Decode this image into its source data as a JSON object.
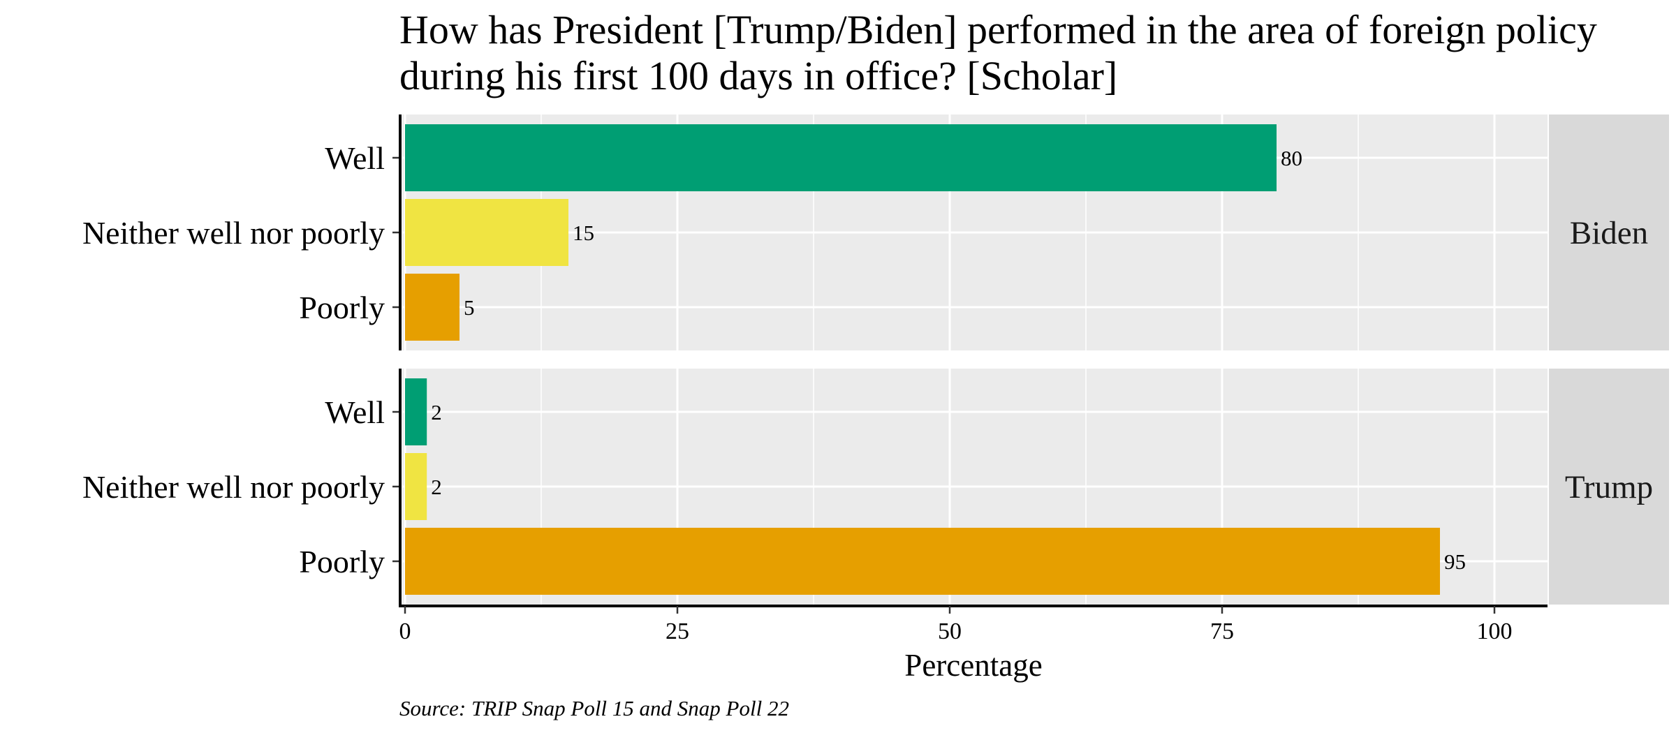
{
  "chart_data": {
    "type": "bar",
    "orientation": "horizontal",
    "title": "How has President [Trump/Biden] performed in the area of foreign policy during his first 100 days in office? [Scholar]",
    "title_lines": [
      "How has President [Trump/Biden] performed in the area of foreign policy",
      "during his first 100 days in office? [Scholar]"
    ],
    "xlabel": "Percentage",
    "ylabel": "",
    "xlim": [
      0,
      105
    ],
    "x_ticks": [
      0,
      25,
      50,
      75,
      100
    ],
    "categories": [
      "Well",
      "Neither well nor poorly",
      "Poorly"
    ],
    "colors": {
      "Well": "#009E73",
      "Neither well nor poorly": "#F0E442",
      "Poorly": "#E69F00"
    },
    "panel_background": "#EBEBEB",
    "strip_background": "#D9D9D9",
    "grid": true,
    "facets": [
      {
        "label": "Biden",
        "values": [
          80,
          15,
          5
        ]
      },
      {
        "label": "Trump",
        "values": [
          2,
          2,
          95
        ]
      }
    ],
    "caption": "Source: TRIP Snap Poll 15 and Snap Poll 22"
  }
}
